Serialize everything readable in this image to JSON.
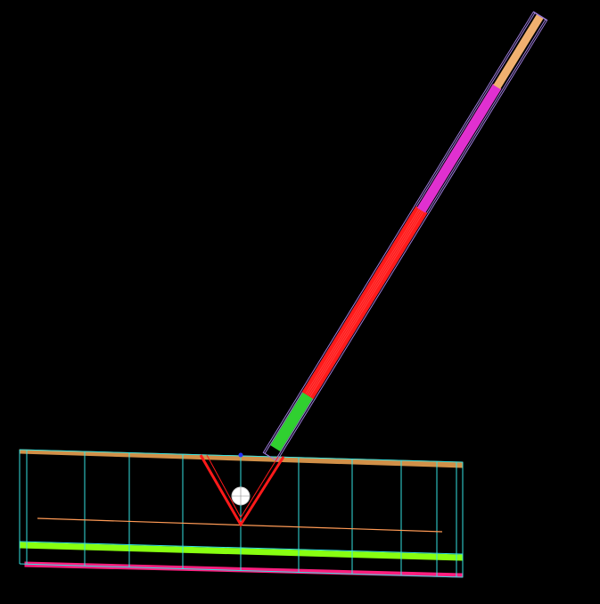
{
  "scene": {
    "background": "#000000",
    "colors": {
      "tank_wireframe": "#33e0e0",
      "tank_top": "#e8a050",
      "tank_band_green": "#88ff11",
      "tank_bottom": "#ff1f7f",
      "inner_line": "#ff9a55",
      "shaft_outer": "#9a7ad8",
      "shaft_upper_fill": "#e030d0",
      "shaft_middle_fill": "#ff1a1a",
      "shaft_lower_fill": "#30d030",
      "shaft_tip_fill": "#f0b070",
      "vee_lines": "#ff1a1a",
      "sphere": "#ffffff",
      "vertex_marker": "#2233ff"
    }
  }
}
